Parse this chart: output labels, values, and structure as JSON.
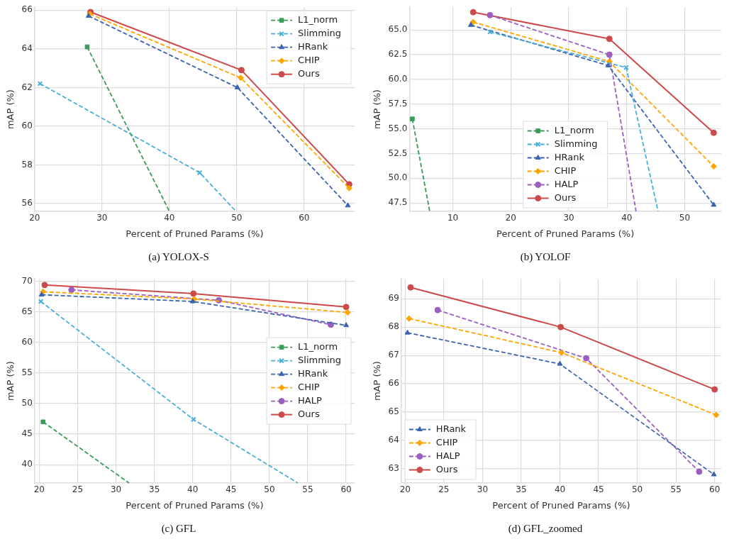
{
  "chart_data": [
    {
      "type": "line",
      "title": "(a) YOLOX-S",
      "xlabel": "Percent of Pruned Params (%)",
      "ylabel": "mAP (%)",
      "xlim": [
        20,
        67.5
      ],
      "ylim": [
        55.6,
        66.15
      ],
      "xticks": [
        20,
        30,
        40,
        50,
        60
      ],
      "yticks": [
        56,
        58,
        60,
        62,
        64,
        66
      ],
      "grid": true,
      "legend": "top right",
      "series": [
        {
          "name": "L1_norm",
          "color": "#3a9c5a",
          "marker": "square",
          "line_style": "dashed",
          "x": [
            27.8,
            40
          ],
          "values": [
            64.1,
            55.6
          ]
        },
        {
          "name": "Slimming",
          "color": "#4aafd6",
          "marker": "cross",
          "line_style": "dashed",
          "x": [
            20.8,
            44.5,
            49.9
          ],
          "values": [
            62.2,
            57.6,
            55.6
          ]
        },
        {
          "name": "HRank",
          "color": "#3b64b0",
          "marker": "triangle",
          "line_style": "dashed",
          "x": [
            28,
            50.1,
            66.5
          ],
          "values": [
            65.7,
            62.0,
            55.9
          ]
        },
        {
          "name": "CHIP",
          "color": "#ffa500",
          "marker": "diamond",
          "line_style": "dashed",
          "x": [
            28.2,
            50.6,
            66.7
          ],
          "values": [
            65.8,
            62.5,
            56.8
          ]
        },
        {
          "name": "Ours",
          "color": "#cc4a4a",
          "marker": "circle",
          "line_style": "solid",
          "x": [
            28.3,
            50.7,
            66.7
          ],
          "values": [
            65.9,
            62.9,
            57.0
          ]
        }
      ]
    },
    {
      "type": "line",
      "title": "(b) YOLOF",
      "xlabel": "Percent of Pruned Params (%)",
      "ylabel": "mAP (%)",
      "xlim": [
        2.5,
        56.3
      ],
      "ylim": [
        46.65,
        67.3
      ],
      "xticks": [
        10,
        20,
        30,
        40,
        50
      ],
      "yticks": [
        {
          "value": 47.5,
          "label": "47.5"
        },
        {
          "value": 50,
          "label": "50.0"
        },
        {
          "value": 52.5,
          "label": "52.5"
        },
        {
          "value": 55,
          "label": "55.0"
        },
        {
          "value": 57.5,
          "label": "57.5"
        },
        {
          "value": 60,
          "label": "60.0"
        },
        {
          "value": 62.5,
          "label": "62.5"
        },
        {
          "value": 65,
          "label": "65.0"
        }
      ],
      "grid": true,
      "legend": "bottom",
      "series": [
        {
          "name": "L1_norm",
          "color": "#3a9c5a",
          "marker": "square",
          "line_style": "dashed",
          "x": [
            3.0,
            6.0
          ],
          "values": [
            56.0,
            46.65
          ]
        },
        {
          "name": "Slimming",
          "color": "#4aafd6",
          "marker": "cross",
          "line_style": "dashed",
          "x": [
            16.4,
            39.9,
            45.4
          ],
          "values": [
            64.8,
            61.2,
            46.65
          ]
        },
        {
          "name": "HRank",
          "color": "#3b64b0",
          "marker": "triangle",
          "line_style": "dashed",
          "x": [
            13.1,
            36.8,
            55
          ],
          "values": [
            65.5,
            61.4,
            47.3
          ]
        },
        {
          "name": "CHIP",
          "color": "#ffa500",
          "marker": "diamond",
          "line_style": "dashed",
          "x": [
            13.5,
            37,
            55
          ],
          "values": [
            65.8,
            61.8,
            51.2
          ]
        },
        {
          "name": "HALP",
          "color": "#9b5fc0",
          "marker": "circle",
          "line_style": "dashed",
          "x": [
            16.4,
            37,
            41.6
          ],
          "values": [
            66.5,
            62.5,
            46.65
          ]
        },
        {
          "name": "Ours",
          "color": "#cc4a4a",
          "marker": "circle",
          "line_style": "solid",
          "x": [
            13.5,
            37,
            55
          ],
          "values": [
            66.8,
            64.1,
            54.6
          ]
        }
      ]
    },
    {
      "type": "line",
      "title": "(c) GFL",
      "xlabel": "Percent of Pruned Params (%)",
      "ylabel": "mAP (%)",
      "xlim": [
        19.4,
        61.1
      ],
      "ylim": [
        37,
        70.4
      ],
      "xticks": [
        20,
        25,
        30,
        35,
        40,
        45,
        50,
        55,
        60
      ],
      "yticks": [
        40,
        45,
        50,
        55,
        60,
        65,
        70
      ],
      "grid": true,
      "legend": "right",
      "series": [
        {
          "name": "L1_norm",
          "color": "#3a9c5a",
          "marker": "square",
          "line_style": "dashed",
          "x": [
            20.5,
            31.7
          ],
          "values": [
            47.0,
            37
          ]
        },
        {
          "name": "Slimming",
          "color": "#4aafd6",
          "marker": "cross",
          "line_style": "dashed",
          "x": [
            20.2,
            40.1,
            53.7
          ],
          "values": [
            66.7,
            47.4,
            37
          ]
        },
        {
          "name": "HRank",
          "color": "#3b64b0",
          "marker": "triangle",
          "line_style": "dashed",
          "x": [
            20.3,
            40,
            60
          ],
          "values": [
            67.8,
            66.7,
            62.8
          ]
        },
        {
          "name": "CHIP",
          "color": "#ffa500",
          "marker": "diamond",
          "line_style": "dashed",
          "x": [
            20.5,
            40.2,
            60.2
          ],
          "values": [
            68.3,
            67.1,
            64.9
          ]
        },
        {
          "name": "HALP",
          "color": "#9b5fc0",
          "marker": "circle",
          "line_style": "dashed",
          "x": [
            24.2,
            43.4,
            58
          ],
          "values": [
            68.6,
            66.9,
            62.9
          ]
        },
        {
          "name": "Ours",
          "color": "#cc4a4a",
          "marker": "circle",
          "line_style": "solid",
          "x": [
            20.7,
            40.1,
            60
          ],
          "values": [
            69.4,
            68.0,
            65.8
          ]
        }
      ]
    },
    {
      "type": "line",
      "title": "(d) GFL_zoomed",
      "xlabel": "Percent of Pruned Params (%)",
      "ylabel": "mAP (%)",
      "xlim": [
        19.5,
        60.85
      ],
      "ylim": [
        62.5,
        69.7
      ],
      "xticks": [
        20,
        25,
        30,
        35,
        40,
        45,
        50,
        55,
        60
      ],
      "yticks": [
        63,
        64,
        65,
        66,
        67,
        68,
        69
      ],
      "grid": true,
      "legend": "bottom left",
      "series": [
        {
          "name": "HRank",
          "color": "#3b64b0",
          "marker": "triangle",
          "line_style": "dashed",
          "x": [
            20.3,
            40,
            59.9
          ],
          "values": [
            67.8,
            66.7,
            62.8
          ]
        },
        {
          "name": "CHIP",
          "color": "#ffa500",
          "marker": "diamond",
          "line_style": "dashed",
          "x": [
            20.5,
            40.2,
            60.2
          ],
          "values": [
            68.3,
            67.1,
            64.9
          ]
        },
        {
          "name": "HALP",
          "color": "#9b5fc0",
          "marker": "circle",
          "line_style": "dashed",
          "x": [
            24.2,
            43.4,
            58
          ],
          "values": [
            68.6,
            66.9,
            62.9
          ]
        },
        {
          "name": "Ours",
          "color": "#cc4a4a",
          "marker": "circle",
          "line_style": "solid",
          "x": [
            20.7,
            40.1,
            60
          ],
          "values": [
            69.4,
            68.0,
            65.8
          ]
        }
      ]
    }
  ]
}
